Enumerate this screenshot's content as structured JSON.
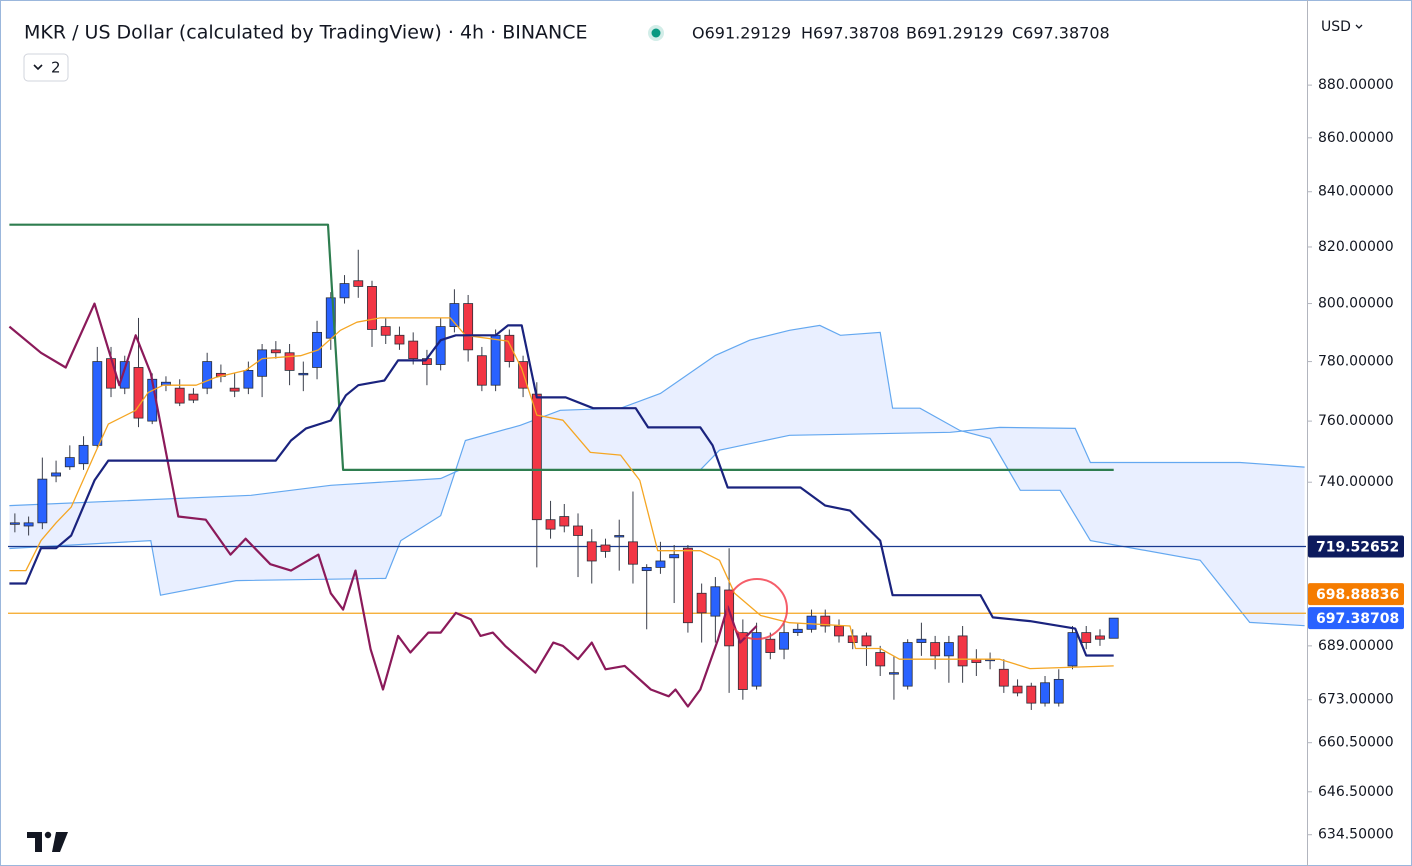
{
  "chart_data": {
    "type": "candlestick",
    "title": "MKR / US Dollar (calculated by TradingView) · 4h · BINANCE",
    "header_values": [
      "O691.29129",
      "H697.38708",
      "B691.29129",
      "C697.38708"
    ],
    "indicator_count": 2,
    "currency": "USD",
    "log_scale": true,
    "grid": false,
    "up_color": "#2962ff",
    "down_color": "#f23645",
    "xlim": [
      -0.5,
      94
    ],
    "ylim": [
      625.9,
      913.3
    ],
    "yticks": [
      {
        "value": 880,
        "label": "880.00000"
      },
      {
        "value": 860,
        "label": "860.00000"
      },
      {
        "value": 840,
        "label": "840.00000"
      },
      {
        "value": 820,
        "label": "820.00000"
      },
      {
        "value": 800,
        "label": "800.00000"
      },
      {
        "value": 780,
        "label": "780.00000"
      },
      {
        "value": 760,
        "label": "760.00000"
      },
      {
        "value": 740,
        "label": "740.00000"
      },
      {
        "value": 689,
        "label": "689.00000"
      },
      {
        "value": 673,
        "label": "673.00000"
      },
      {
        "value": 660.5,
        "label": "660.50000"
      },
      {
        "value": 646.5,
        "label": "646.50000"
      },
      {
        "value": 634.5,
        "label": "634.50000"
      }
    ],
    "x": [
      0,
      1,
      2,
      3,
      4,
      5,
      6,
      7,
      8,
      9,
      10,
      11,
      12,
      13,
      14,
      15,
      16,
      17,
      18,
      19,
      20,
      21,
      22,
      23,
      24,
      25,
      26,
      27,
      28,
      29,
      30,
      31,
      32,
      33,
      34,
      35,
      36,
      37,
      38,
      39,
      40,
      41,
      42,
      43,
      44,
      45,
      46,
      47,
      48,
      49,
      50,
      51,
      52,
      53,
      54,
      55,
      56,
      57,
      58,
      59,
      60,
      61,
      62,
      63,
      64,
      65,
      66,
      67,
      68,
      69,
      70,
      71,
      72,
      73,
      74,
      75,
      76,
      77,
      78,
      79,
      80
    ],
    "open": [
      727,
      726,
      727,
      742,
      745,
      746,
      752,
      781,
      771,
      778,
      760,
      772,
      771,
      769,
      771,
      776,
      771,
      771,
      775,
      784,
      783,
      776,
      778,
      788,
      802,
      808,
      806,
      792,
      789,
      787,
      781,
      779,
      792,
      800,
      782,
      772,
      789,
      780,
      769,
      728,
      729,
      726,
      721,
      720,
      723,
      721,
      712,
      713,
      716,
      719,
      705,
      698,
      706,
      693,
      677,
      691,
      688,
      693,
      694,
      698,
      695,
      692,
      692,
      687,
      681,
      677,
      690,
      690,
      686,
      692,
      685,
      685,
      682,
      677,
      677,
      672,
      672,
      683,
      693,
      692,
      691.29129
    ],
    "high": [
      730,
      729,
      748,
      747,
      752,
      755,
      785,
      785,
      782,
      795,
      776,
      775,
      774,
      771,
      783,
      779,
      776,
      780,
      786,
      787,
      786,
      780,
      794,
      804,
      810,
      819,
      808,
      795,
      792,
      790,
      784,
      795,
      805,
      803,
      785,
      791,
      791,
      782,
      773,
      734,
      733,
      730,
      725,
      722,
      728,
      737,
      714,
      721,
      720,
      720,
      708,
      710,
      719,
      697,
      696,
      693,
      696,
      696,
      700,
      700,
      697,
      694,
      693,
      689,
      686,
      691,
      696,
      692,
      692,
      695,
      688,
      687,
      685,
      679,
      678,
      680,
      682,
      695,
      695,
      694,
      697.38708
    ],
    "low": [
      724,
      723,
      725,
      740,
      744,
      744,
      751,
      768,
      769,
      758,
      759,
      770,
      765,
      766,
      769,
      773,
      768,
      769,
      768,
      781,
      772,
      770,
      774,
      784,
      800,
      802,
      785,
      786,
      784,
      779,
      772,
      777,
      790,
      780,
      770,
      770,
      778,
      768,
      713,
      722,
      724,
      710,
      708,
      716,
      712,
      708,
      694,
      711,
      702,
      693,
      690,
      690,
      675,
      673,
      676,
      685,
      685,
      692,
      693,
      693,
      690,
      688,
      683,
      680,
      673,
      676,
      686,
      682,
      678,
      678,
      680,
      682,
      675,
      674,
      670,
      671,
      671,
      682,
      688,
      689,
      691.29129
    ],
    "close": [
      727,
      727,
      741,
      743,
      748,
      752,
      780,
      771,
      780,
      761,
      774,
      773,
      766,
      767,
      780,
      775,
      770,
      777,
      784,
      783,
      777,
      776,
      790,
      802,
      807,
      806,
      791,
      789,
      786,
      781,
      779,
      792,
      800,
      784,
      772,
      789,
      780,
      771,
      728,
      725,
      726,
      723,
      715,
      718,
      723,
      714,
      713,
      715,
      717,
      696,
      699,
      707,
      689,
      676,
      693,
      687,
      693,
      694,
      698,
      695,
      692,
      690,
      689,
      683,
      681,
      690,
      691,
      686,
      690,
      683,
      684,
      685,
      677,
      675,
      672,
      678,
      679,
      693,
      690,
      691,
      697.38708
    ],
    "cloud": [
      {
        "color": "#64a8f0",
        "x": [
          -0.4,
          9.9,
          10.6,
          16.1,
          27.0,
          28.1,
          31.0,
          32.8,
          36.8,
          39.7,
          44.1,
          47.0,
          51.0,
          53.5,
          56.4,
          58.6,
          60.1,
          63.0,
          63.9,
          65.9,
          68.8,
          71.0,
          73.2,
          76.1,
          78.3,
          86.3,
          89.9,
          93.9
        ],
        "values": [
          718.9,
          721.4,
          704.4,
          708.9,
          709.6,
          721.4,
          729.3,
          753.6,
          758.6,
          763.6,
          764.3,
          769.2,
          782.1,
          787.3,
          790.7,
          792.4,
          789,
          790,
          764.3,
          764.3,
          756.9,
          754.3,
          737.4,
          737.4,
          721.4,
          715.2,
          696.1,
          695.1
        ]
      },
      {
        "color": "#64a8f0",
        "x": [
          -0.4,
          17.2,
          23.0,
          31.0,
          32.4,
          49.9,
          51.3,
          56.4,
          68.1,
          71.7,
          77.2,
          78.3,
          89.2,
          93.9
        ],
        "values": [
          732.5,
          735.8,
          739,
          741.2,
          744,
          744,
          750.4,
          755.3,
          756.3,
          757.9,
          757.6,
          746.4,
          746.4,
          744.9
        ]
      }
    ],
    "cloud_fill": "rgba(41,98,255,0.10)",
    "overlays": [
      {
        "color": "#2e7d4f",
        "x": [
          -0.4,
          22.8,
          23.9,
          80
        ],
        "values": [
          828,
          828,
          744,
          744
        ]
      },
      {
        "color": "#8b1a5a",
        "x": [
          -0.4,
          1.9,
          3.7,
          5.8,
          7.6,
          8.8,
          9.9,
          11.9,
          13.9,
          15.7,
          16.8,
          18.6,
          20.1,
          22.1,
          23.0,
          23.9,
          24.8,
          25.9,
          26.8,
          27.9,
          28.8,
          30.1,
          31.0,
          32.1,
          33.2,
          33.9,
          34.8,
          35.7,
          36.8,
          37.9,
          39.2,
          39.9,
          41.0,
          42.0,
          43.0,
          44.4,
          46.3,
          47.6,
          48.1,
          49.0,
          49.9,
          51.2,
          51.9,
          52.8,
          54.0
        ],
        "values": [
          792,
          783,
          778,
          800,
          772,
          789,
          776,
          729,
          728,
          717,
          722,
          714,
          712,
          717,
          705,
          700,
          712,
          688,
          676,
          692,
          687,
          693,
          693,
          699,
          697,
          692,
          693,
          689,
          685,
          681,
          690,
          689,
          685,
          690,
          682,
          683,
          676,
          674,
          676,
          671,
          676,
          691,
          701,
          690,
          695
        ]
      },
      {
        "color": "#f5a623",
        "x": [
          -0.4,
          0.8,
          1.9,
          3.0,
          4.1,
          5.8,
          6.8,
          8.8,
          9.7,
          10.8,
          13.2,
          14.6,
          16.8,
          18.0,
          20.8,
          22.1,
          23.7,
          24.9,
          26.6,
          31.7,
          32.8,
          35.9,
          36.9,
          38.0,
          39.9,
          41.9,
          44.1,
          45.5,
          46.8,
          49.9,
          51.3,
          52.4,
          54.3,
          56.4,
          60.8,
          61.2,
          63.0,
          64.4,
          71.7,
          73.9,
          80
        ],
        "values": [
          712,
          712,
          721.4,
          727,
          732,
          749,
          759,
          763.6,
          769.5,
          772,
          772,
          774.6,
          777,
          781,
          782,
          784,
          790.7,
          793.5,
          795,
          795,
          789,
          787,
          777.6,
          762,
          760.3,
          749.7,
          748.8,
          740.6,
          718.2,
          718.2,
          715.2,
          705,
          698.2,
          696,
          695,
          688.2,
          688.2,
          685,
          685,
          682.2,
          683
        ]
      },
      {
        "color": "#1a237e",
        "x": [
          -0.4,
          0.8,
          1.9,
          3.0,
          4.1,
          5.8,
          6.8,
          19.0,
          20.1,
          21.2,
          23.0,
          24.1,
          25.0,
          26.9,
          27.9,
          29.9,
          31.0,
          32.1,
          35.0,
          35.9,
          36.9,
          38.0,
          40.1,
          42.1,
          45.2,
          46.1,
          49.9,
          50.8,
          51.9,
          57.2,
          59.0,
          60.8,
          63.0,
          63.9,
          70.3,
          71.2,
          73.9,
          77.2,
          78.0,
          80
        ],
        "values": [
          708,
          708,
          719,
          719,
          723,
          740.6,
          747,
          747,
          753.6,
          757.6,
          760.2,
          768.6,
          772,
          773.6,
          780.4,
          780.4,
          787.3,
          789,
          789,
          792.4,
          792.4,
          767.9,
          767.9,
          764.3,
          764.3,
          757.9,
          757.9,
          752,
          738.3,
          738.3,
          732.5,
          730.9,
          721.4,
          704.4,
          704.4,
          697.6,
          696.5,
          694.2,
          686.1,
          686.1
        ]
      }
    ],
    "hlines": [
      {
        "value": 719.52652,
        "color": "#1a3a8f"
      },
      {
        "value": 698.88836,
        "color": "#f5a623"
      }
    ],
    "price_tags": [
      {
        "value": 719.52652,
        "color": "#0d1b5e"
      },
      {
        "value": 698.88836,
        "color": "#f57c00"
      },
      {
        "value": 697.38708,
        "color": "#2962ff"
      }
    ]
  }
}
